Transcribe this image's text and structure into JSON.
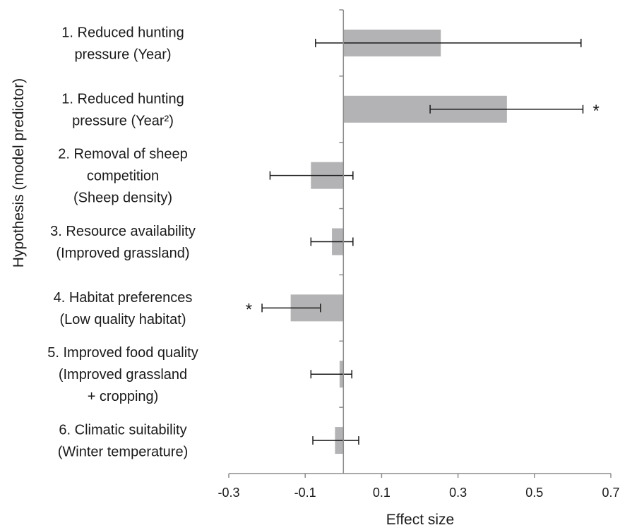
{
  "chart_data": {
    "type": "bar",
    "orientation": "horizontal",
    "title": "",
    "xlabel": "Effect size",
    "ylabel": "Hypothesis (model predictor)",
    "xlim": [
      -0.3,
      0.7
    ],
    "xticks": [
      "-0.3",
      "-0.1",
      "0.1",
      "0.3",
      "0.5",
      "0.7"
    ],
    "grid": false,
    "bar_color": "#b3b3b5",
    "categories": [
      [
        "1. Reduced hunting",
        "pressure (Year)"
      ],
      [
        "1. Reduced hunting",
        "pressure (Year²)"
      ],
      [
        "2. Removal of sheep",
        "competition",
        "(Sheep density)"
      ],
      [
        "3. Resource availability",
        "(Improved grassland)"
      ],
      [
        "4. Habitat preferences",
        "(Low quality habitat)"
      ],
      [
        "5. Improved food quality",
        "(Improved grassland",
        "+ cropping)"
      ],
      [
        "6. Climatic suitability",
        "(Winter temperature)"
      ]
    ],
    "values": [
      0.255,
      0.428,
      -0.085,
      -0.03,
      -0.138,
      -0.01,
      -0.022
    ],
    "error_low": [
      -0.073,
      0.227,
      -0.192,
      -0.085,
      -0.213,
      -0.085,
      -0.08
    ],
    "error_high": [
      0.622,
      0.627,
      0.025,
      0.025,
      -0.06,
      0.022,
      0.04
    ],
    "significance": [
      "",
      "*",
      "",
      "",
      "*",
      "",
      ""
    ]
  }
}
